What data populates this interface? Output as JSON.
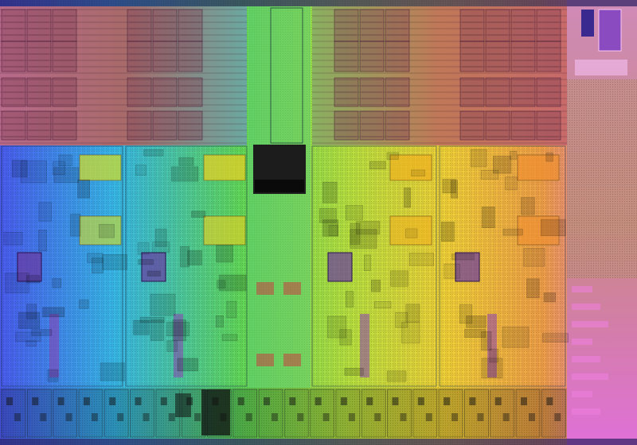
{
  "image": {
    "subject": "die-shot",
    "palette": {
      "blue": "#3a6cf0",
      "cyan": "#38c8e8",
      "green": "#7ee04a",
      "lime": "#c8e840",
      "yellow": "#f2d83a",
      "orange": "#f0a040",
      "magenta": "#e070d8",
      "cache_tint": "#c06a5a",
      "grid_line": "#2a1c40"
    },
    "regions": [
      "left-l2-cache",
      "right-l2-cache",
      "central-interconnect",
      "core-0",
      "core-1",
      "core-2",
      "core-3",
      "io-pad-column",
      "bottom-pad-row"
    ]
  }
}
